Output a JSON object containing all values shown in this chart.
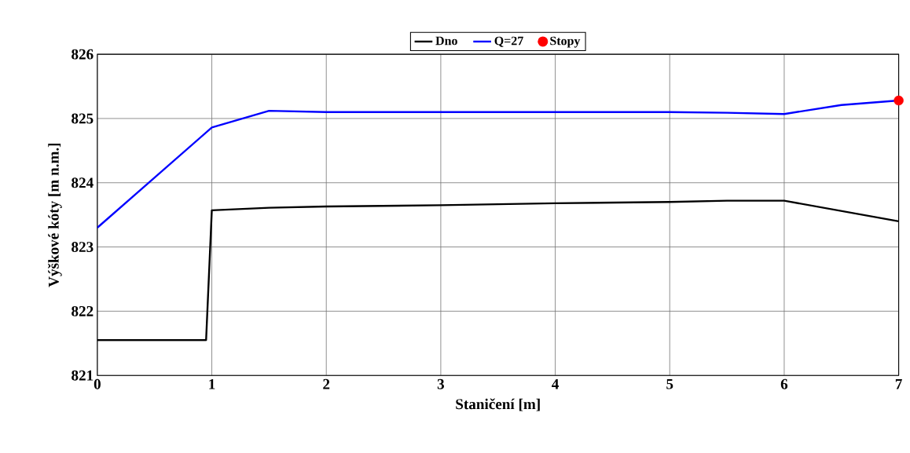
{
  "chart_data": {
    "type": "line",
    "xlabel": "Staničení [m]",
    "ylabel": "Výškové kóty [m n.m.]",
    "xlim": [
      0,
      7
    ],
    "xticks": [
      0,
      1,
      2,
      3,
      4,
      5,
      6,
      7
    ],
    "ylim": [
      821,
      826
    ],
    "yticks": [
      821,
      822,
      823,
      824,
      825,
      826
    ],
    "grid": true,
    "legend": "top",
    "marker": "none",
    "line_style": "solid",
    "series": [
      {
        "name": "Dno",
        "color": "#000000",
        "x": [
          0,
          0.95,
          1,
          1.5,
          2,
          3,
          4,
          5,
          5.5,
          6,
          7
        ],
        "values": [
          821.55,
          821.55,
          823.57,
          823.61,
          823.63,
          823.65,
          823.68,
          823.7,
          823.72,
          823.72,
          823.4
        ]
      },
      {
        "name": "Q=27",
        "color": "#0000ff",
        "x": [
          0,
          1,
          1.5,
          2,
          3,
          4,
          5,
          5.5,
          6,
          6.5,
          7
        ],
        "values": [
          823.3,
          824.86,
          825.12,
          825.1,
          825.1,
          825.1,
          825.1,
          825.09,
          825.07,
          825.21,
          825.28
        ]
      },
      {
        "name": "Stopy",
        "type": "scatter",
        "marker": "circle",
        "color": "#ff0000",
        "x": [
          7
        ],
        "values": [
          825.28
        ]
      }
    ]
  }
}
